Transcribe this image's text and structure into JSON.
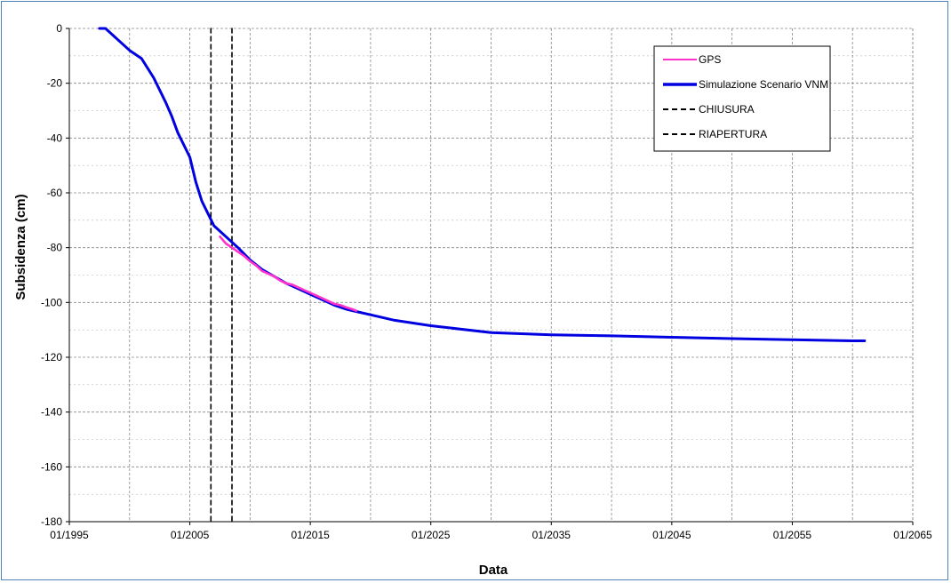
{
  "chart_data": {
    "type": "line",
    "xlabel": "Data",
    "ylabel": "Subsidenza (cm)",
    "x_unit": "year",
    "xlim": [
      1995,
      2065
    ],
    "ylim": [
      -180,
      0
    ],
    "x_ticks": [
      {
        "value": 1995,
        "label": "01/1995"
      },
      {
        "value": 2005,
        "label": "01/2005"
      },
      {
        "value": 2015,
        "label": "01/2015"
      },
      {
        "value": 2025,
        "label": "01/2025"
      },
      {
        "value": 2035,
        "label": "01/2035"
      },
      {
        "value": 2045,
        "label": "01/2045"
      },
      {
        "value": 2055,
        "label": "01/2055"
      },
      {
        "value": 2065,
        "label": "01/2065"
      }
    ],
    "y_ticks": [
      0,
      -20,
      -40,
      -60,
      -80,
      -100,
      -120,
      -140,
      -160,
      -180
    ],
    "grid": true,
    "legend_position": "top-right",
    "series": [
      {
        "name": "GPS",
        "color": "#ff33cc",
        "style": "solid",
        "x": [
          2007.5,
          2008.0,
          2008.5,
          2009.0,
          2009.5,
          2010.0,
          2010.5,
          2011.0,
          2011.5,
          2012.0,
          2012.5,
          2013.0,
          2013.5,
          2014.0,
          2014.5,
          2015.0,
          2015.5,
          2016.0,
          2016.5,
          2017.0,
          2017.5,
          2018.0,
          2018.5,
          2018.8
        ],
        "y": [
          -76,
          -78.5,
          -80,
          -81.5,
          -83,
          -85,
          -86.5,
          -88.5,
          -89.5,
          -90.5,
          -92,
          -93,
          -93.5,
          -94.5,
          -95.5,
          -96.5,
          -97.5,
          -98.5,
          -99.5,
          -100.5,
          -101,
          -101.8,
          -102.5,
          -103
        ]
      },
      {
        "name": "Simulazione Scenario VNM",
        "color": "#0000e0",
        "style": "solid",
        "x": [
          1997.5,
          1998.0,
          1999.0,
          2000.0,
          2001.0,
          2002.0,
          2003.0,
          2003.5,
          2004.0,
          2005.0,
          2005.5,
          2006.0,
          2007.0,
          2008.0,
          2009.0,
          2010.0,
          2011.0,
          2012.0,
          2013.0,
          2014.0,
          2015.0,
          2016.0,
          2017.0,
          2018.0,
          2019.0,
          2020.0,
          2022.0,
          2025.0,
          2030.0,
          2035.0,
          2040.0,
          2045.0,
          2050.0,
          2055.0,
          2060.0,
          2061.0
        ],
        "y": [
          0,
          0,
          -4,
          -8,
          -11,
          -18,
          -27,
          -32,
          -38,
          -47,
          -56,
          -63,
          -72,
          -76,
          -80,
          -84.5,
          -88,
          -90.5,
          -93,
          -95,
          -97,
          -99,
          -101,
          -102.5,
          -103.5,
          -104.5,
          -106.5,
          -108.5,
          -111,
          -111.8,
          -112.2,
          -112.7,
          -113.2,
          -113.6,
          -114,
          -114
        ]
      },
      {
        "name": "CHIUSURA",
        "color": "#000000",
        "style": "dashed",
        "x": [
          2006.75,
          2006.75
        ],
        "y": [
          0,
          -180
        ]
      },
      {
        "name": "RIAPERTURA",
        "color": "#000000",
        "style": "dashed",
        "x": [
          2008.5,
          2008.5
        ],
        "y": [
          0,
          -180
        ]
      }
    ]
  }
}
